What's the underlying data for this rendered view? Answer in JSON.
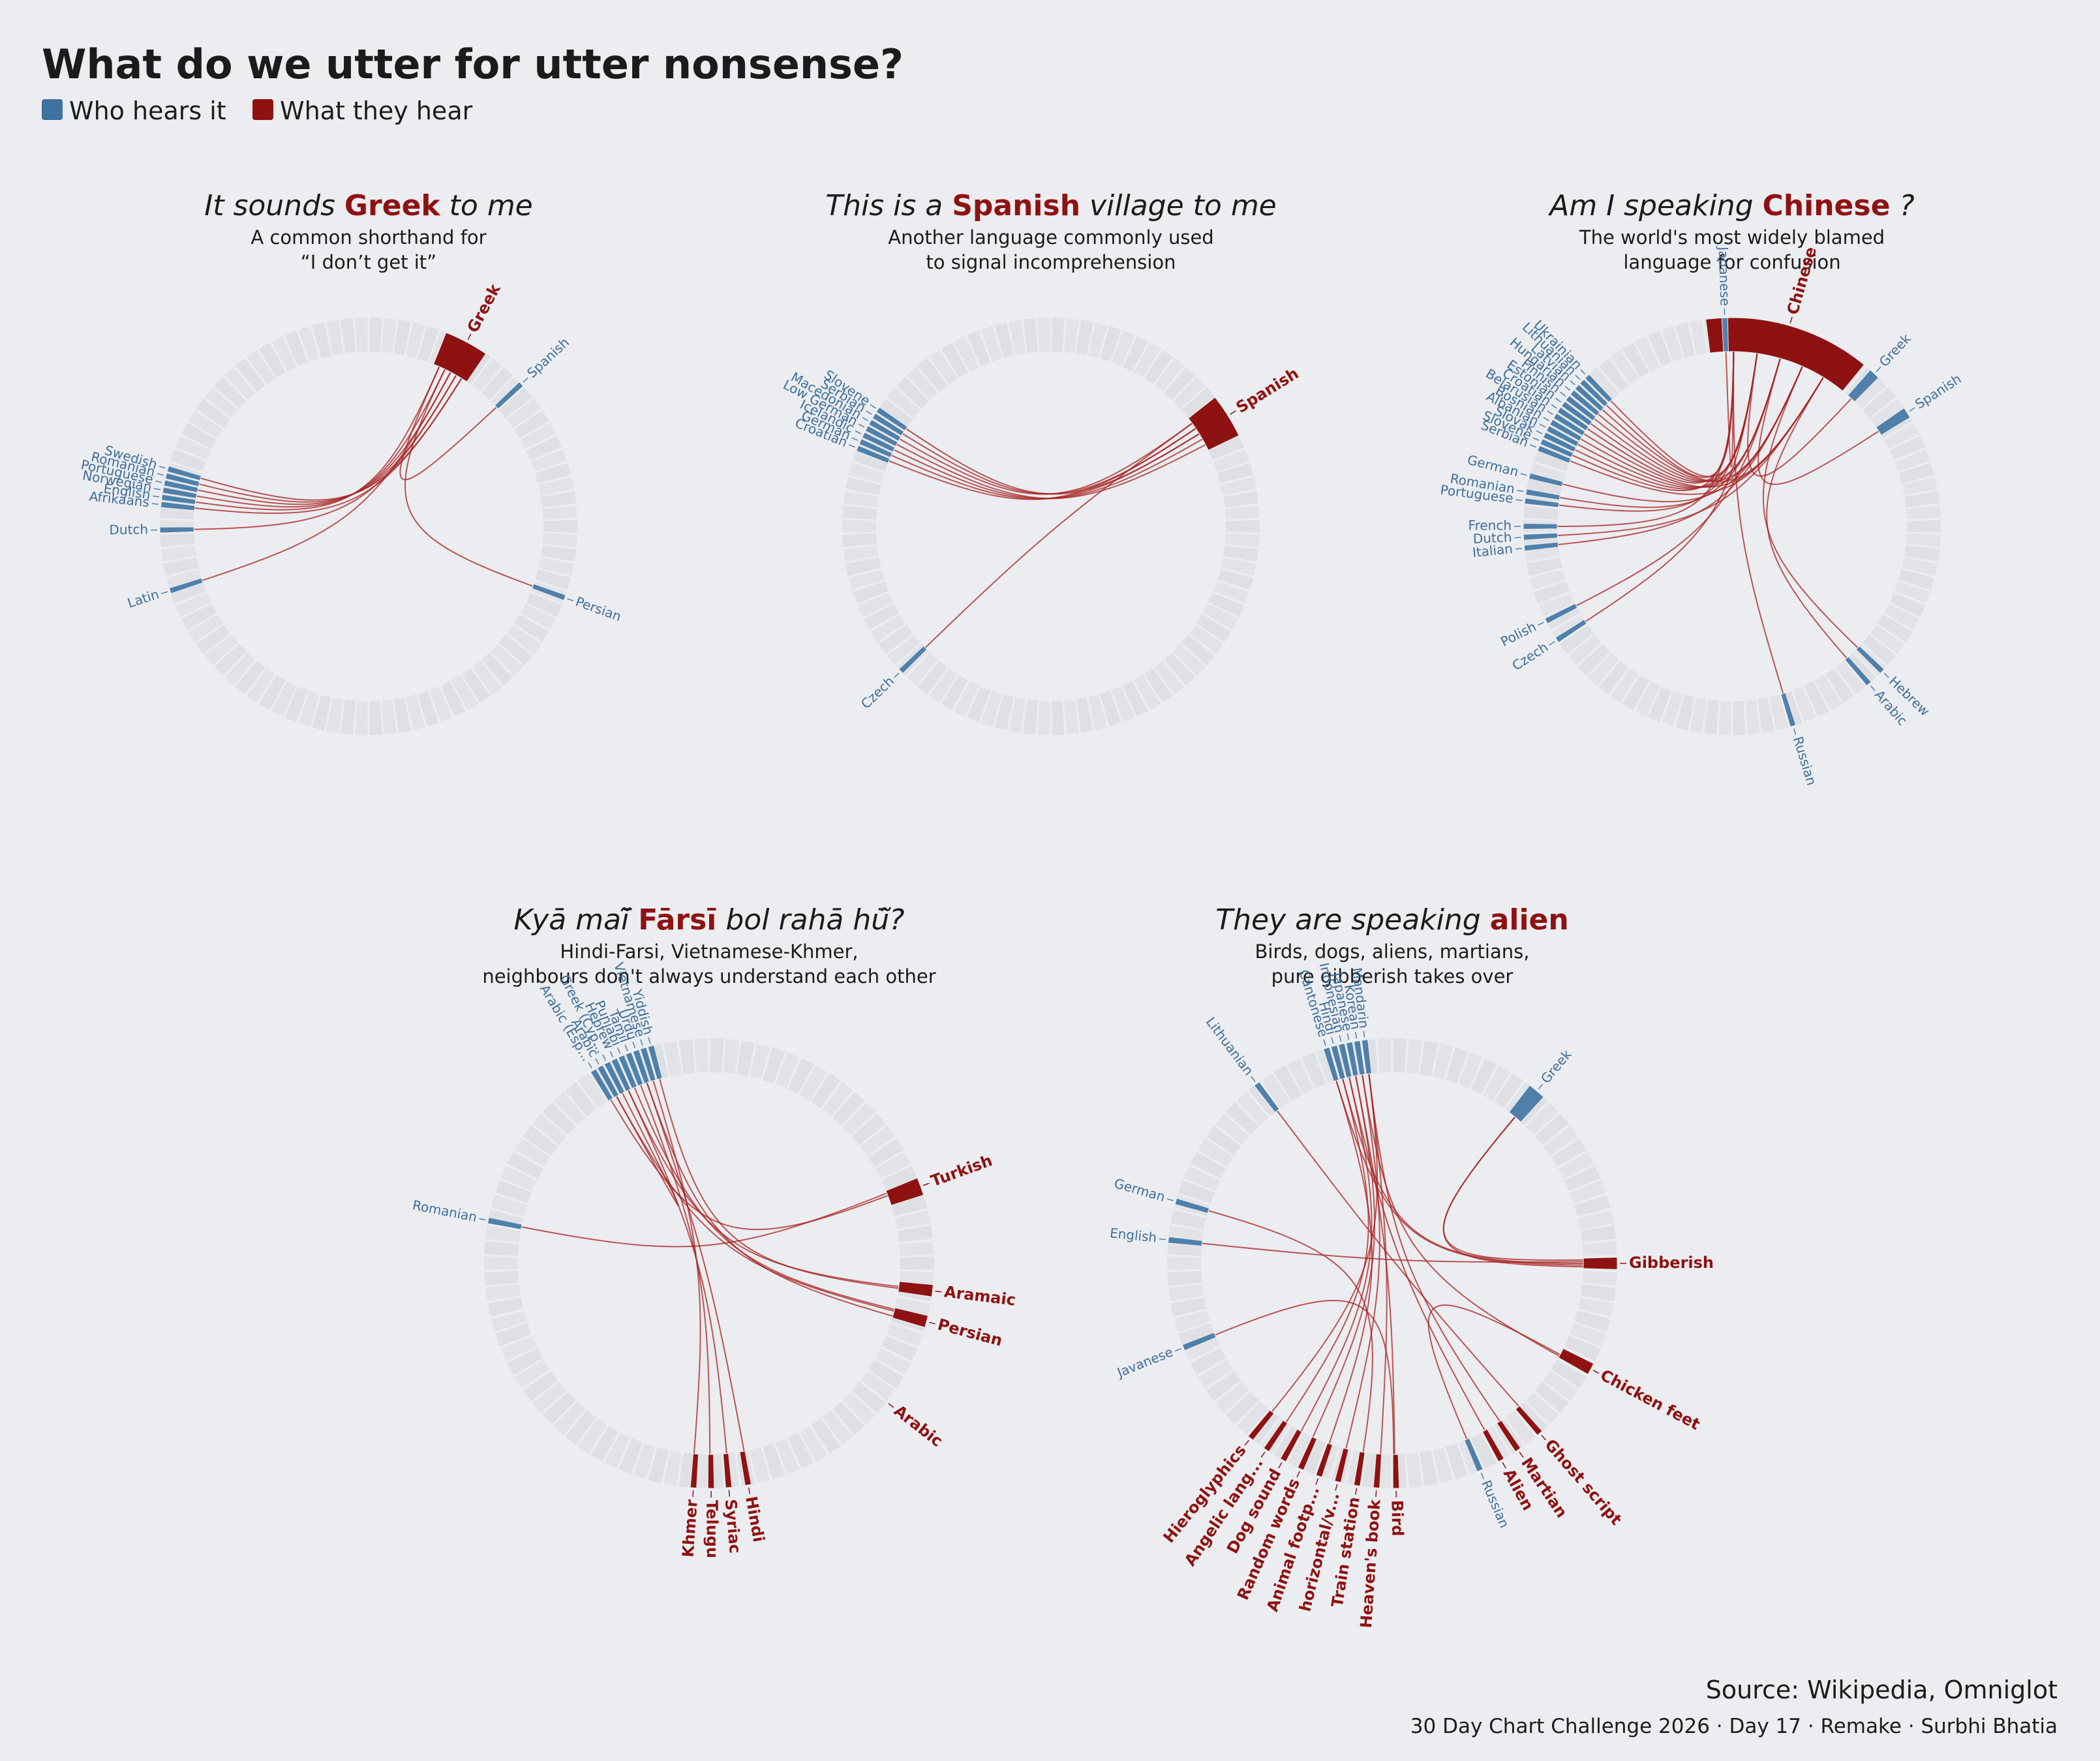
{
  "title": "What do we utter for utter nonsense?",
  "legend": [
    {
      "label": "Who hears it",
      "color": "#3E72A0"
    },
    {
      "label": "What they hear",
      "color": "#8E1212"
    }
  ],
  "colors": {
    "source": "#4F80AA",
    "target": "#8E1212",
    "link": "#A52222",
    "ring": "#DFE0E4",
    "background": "#ECEDF0"
  },
  "source_note": "Source: Wikipedia, Omniglot",
  "credit": "30 Day Chart Challenge 2026 · Day 17 · Remake · Surbhi Bhatia",
  "panels": [
    {
      "title_pre": "It sounds",
      "title_hl": "Greek",
      "title_post": "to me",
      "subtitle": [
        "A common shorthand for",
        "“I don’t get it”"
      ]
    },
    {
      "title_pre": "This is a",
      "title_hl": "Spanish",
      "title_post": "village to me",
      "subtitle": [
        "Another language commonly used",
        "to signal incomprehension"
      ]
    },
    {
      "title_pre": "Am I speaking",
      "title_hl": "Chinese",
      "title_post": "?",
      "subtitle": [
        "The world's most widely blamed",
        "language for confusion"
      ]
    },
    {
      "title_pre": "Kyā maī̃",
      "title_hl": "Fārsī",
      "title_post": "bol rahā hū̃?",
      "subtitle": [
        "Hindi-Farsi, Vietnamese-Khmer,",
        "neighbours don't always understand each other"
      ]
    },
    {
      "title_pre": "They are speaking",
      "title_hl": "alien",
      "title_post": "",
      "subtitle": [
        "Birds, dogs, aliens, martians,",
        "pure gibberish takes over"
      ]
    }
  ],
  "chart_data": [
    {
      "type": "chord",
      "title": "It sounds Greek to me",
      "nodes": [
        {
          "name": "Greek",
          "role": "heard",
          "angle": 28,
          "weight": 8
        },
        {
          "name": "Spanish",
          "role": "hearer",
          "angle": 47,
          "weight": 1
        },
        {
          "name": "Persian",
          "role": "hearer",
          "angle": 110,
          "weight": 1
        },
        {
          "name": "Latin",
          "role": "hearer",
          "angle": 252,
          "weight": 1
        },
        {
          "name": "Dutch",
          "role": "hearer",
          "angle": 269,
          "weight": 1
        },
        {
          "name": "Afrikaans",
          "role": "hearer",
          "angle": 276,
          "weight": 1
        },
        {
          "name": "English",
          "role": "hearer",
          "angle": 278,
          "weight": 1
        },
        {
          "name": "Norwegian",
          "role": "hearer",
          "angle": 280,
          "weight": 1
        },
        {
          "name": "Portuguese",
          "role": "hearer",
          "angle": 282,
          "weight": 1
        },
        {
          "name": "Romanian",
          "role": "hearer",
          "angle": 284,
          "weight": 1
        },
        {
          "name": "Swedish",
          "role": "hearer",
          "angle": 286,
          "weight": 1
        }
      ],
      "links": [
        {
          "from": "Spanish",
          "to": "Greek"
        },
        {
          "from": "Persian",
          "to": "Greek"
        },
        {
          "from": "Latin",
          "to": "Greek"
        },
        {
          "from": "Dutch",
          "to": "Greek"
        },
        {
          "from": "Afrikaans",
          "to": "Greek"
        },
        {
          "from": "English",
          "to": "Greek"
        },
        {
          "from": "Norwegian",
          "to": "Greek"
        },
        {
          "from": "Portuguese",
          "to": "Greek"
        },
        {
          "from": "Romanian",
          "to": "Greek"
        },
        {
          "from": "Swedish",
          "to": "Greek"
        }
      ]
    },
    {
      "type": "chord",
      "title": "This is a Spanish village to me",
      "nodes": [
        {
          "name": "Spanish",
          "role": "heard",
          "angle": 58,
          "weight": 8
        },
        {
          "name": "Czech",
          "role": "hearer",
          "angle": 226,
          "weight": 1
        },
        {
          "name": "Croatian",
          "role": "hearer",
          "angle": 292,
          "weight": 1
        },
        {
          "name": "German",
          "role": "hearer",
          "angle": 294,
          "weight": 1
        },
        {
          "name": "Icelandic",
          "role": "hearer",
          "angle": 296,
          "weight": 1
        },
        {
          "name": "Low German",
          "role": "hearer",
          "angle": 298,
          "weight": 1
        },
        {
          "name": "Macedonian",
          "role": "hearer",
          "angle": 300,
          "weight": 1
        },
        {
          "name": "Serbian",
          "role": "hearer",
          "angle": 302,
          "weight": 1
        },
        {
          "name": "Slovene",
          "role": "hearer",
          "angle": 304,
          "weight": 1
        }
      ],
      "links": [
        {
          "from": "Czech",
          "to": "Spanish"
        },
        {
          "from": "Croatian",
          "to": "Spanish"
        },
        {
          "from": "German",
          "to": "Spanish"
        },
        {
          "from": "Icelandic",
          "to": "Spanish"
        },
        {
          "from": "Low German",
          "to": "Spanish"
        },
        {
          "from": "Macedonian",
          "to": "Spanish"
        },
        {
          "from": "Serbian",
          "to": "Spanish"
        },
        {
          "from": "Slovene",
          "to": "Spanish"
        }
      ]
    },
    {
      "type": "chord",
      "title": "Am I speaking Chinese ?",
      "nodes": [
        {
          "name": "Chinese",
          "role": "heard",
          "angle": 16,
          "weight": 30
        },
        {
          "name": "Japanese",
          "role": "hearer",
          "angle": 358,
          "weight": 1
        },
        {
          "name": "Greek",
          "role": "hearer",
          "angle": 43,
          "weight": 2
        },
        {
          "name": "Spanish",
          "role": "hearer",
          "angle": 57,
          "weight": 2
        },
        {
          "name": "Hebrew",
          "role": "hearer",
          "angle": 134,
          "weight": 1
        },
        {
          "name": "Arabic",
          "role": "hearer",
          "angle": 139,
          "weight": 1
        },
        {
          "name": "Russian",
          "role": "hearer",
          "angle": 163,
          "weight": 1
        },
        {
          "name": "Czech",
          "role": "hearer",
          "angle": 237,
          "weight": 1
        },
        {
          "name": "Polish",
          "role": "hearer",
          "angle": 243,
          "weight": 1
        },
        {
          "name": "Italian",
          "role": "hearer",
          "angle": 264,
          "weight": 1
        },
        {
          "name": "Dutch",
          "role": "hearer",
          "angle": 267,
          "weight": 1
        },
        {
          "name": "French",
          "role": "hearer",
          "angle": 270,
          "weight": 1
        },
        {
          "name": "Portuguese",
          "role": "hearer",
          "angle": 277,
          "weight": 1
        },
        {
          "name": "Romanian",
          "role": "hearer",
          "angle": 279.5,
          "weight": 1
        },
        {
          "name": "German",
          "role": "hearer",
          "angle": 284,
          "weight": 1
        },
        {
          "name": "Serbian",
          "role": "hearer",
          "angle": 292,
          "weight": 1
        },
        {
          "name": "Slovene",
          "role": "hearer",
          "angle": 294,
          "weight": 1
        },
        {
          "name": "Slovak",
          "role": "hearer",
          "angle": 296,
          "weight": 1
        },
        {
          "name": "Albanian",
          "role": "hearer",
          "angle": 298,
          "weight": 1
        },
        {
          "name": "Bosnian",
          "role": "hearer",
          "angle": 300,
          "weight": 1
        },
        {
          "name": "Belarusian",
          "role": "hearer",
          "angle": 302,
          "weight": 1
        },
        {
          "name": "Croatian",
          "role": "hearer",
          "angle": 304,
          "weight": 1
        },
        {
          "name": "Estonian",
          "role": "hearer",
          "angle": 306,
          "weight": 1
        },
        {
          "name": "Finnish",
          "role": "hearer",
          "angle": 308,
          "weight": 1
        },
        {
          "name": "Hungarian",
          "role": "hearer",
          "angle": 310,
          "weight": 1
        },
        {
          "name": "Latvian",
          "role": "hearer",
          "angle": 312,
          "weight": 1
        },
        {
          "name": "Lithuanian",
          "role": "hearer",
          "angle": 314,
          "weight": 1
        },
        {
          "name": "Ukrainian",
          "role": "hearer",
          "angle": 316,
          "weight": 1
        }
      ],
      "links": [
        {
          "from": "Japanese",
          "to": "Chinese"
        },
        {
          "from": "Greek",
          "to": "Chinese"
        },
        {
          "from": "Spanish",
          "to": "Chinese"
        },
        {
          "from": "Hebrew",
          "to": "Chinese"
        },
        {
          "from": "Arabic",
          "to": "Chinese"
        },
        {
          "from": "Russian",
          "to": "Chinese"
        },
        {
          "from": "Czech",
          "to": "Chinese"
        },
        {
          "from": "Polish",
          "to": "Chinese"
        },
        {
          "from": "Italian",
          "to": "Chinese"
        },
        {
          "from": "Dutch",
          "to": "Chinese"
        },
        {
          "from": "French",
          "to": "Chinese"
        },
        {
          "from": "Portuguese",
          "to": "Chinese"
        },
        {
          "from": "Romanian",
          "to": "Chinese"
        },
        {
          "from": "German",
          "to": "Chinese"
        },
        {
          "from": "Serbian",
          "to": "Chinese"
        },
        {
          "from": "Slovene",
          "to": "Chinese"
        },
        {
          "from": "Slovak",
          "to": "Chinese"
        },
        {
          "from": "Albanian",
          "to": "Chinese"
        },
        {
          "from": "Bosnian",
          "to": "Chinese"
        },
        {
          "from": "Belarusian",
          "to": "Chinese"
        },
        {
          "from": "Croatian",
          "to": "Chinese"
        },
        {
          "from": "Estonian",
          "to": "Chinese"
        },
        {
          "from": "Finnish",
          "to": "Chinese"
        },
        {
          "from": "Hungarian",
          "to": "Chinese"
        },
        {
          "from": "Latvian",
          "to": "Chinese"
        },
        {
          "from": "Lithuanian",
          "to": "Chinese"
        },
        {
          "from": "Ukrainian",
          "to": "Chinese"
        }
      ]
    },
    {
      "type": "chord",
      "title": "Kyā maī̃ Fārsī bol rahā hū̃?",
      "nodes": [
        {
          "name": "Turkish",
          "role": "heard",
          "angle": 70,
          "weight": 3
        },
        {
          "name": "Aramaic",
          "role": "heard",
          "angle": 97,
          "weight": 2
        },
        {
          "name": "Persian",
          "role": "heard",
          "angle": 105,
          "weight": 2
        },
        {
          "name": "Arabic",
          "role": "heard",
          "angle": 128,
          "weight": 2
        },
        {
          "name": "Hindi",
          "role": "heard",
          "angle": 170,
          "weight": 1
        },
        {
          "name": "Syriac",
          "role": "heard",
          "angle": 175,
          "weight": 1
        },
        {
          "name": "Telugu",
          "role": "heard",
          "angle": 179.5,
          "weight": 1
        },
        {
          "name": "Khmer",
          "role": "heard",
          "angle": 184,
          "weight": 1
        },
        {
          "name": "Romanian",
          "role": "hearer",
          "angle": 281,
          "weight": 1
        },
        {
          "name": "Arabic (Esp...",
          "role": "hearer",
          "angle": 329,
          "weight": 1
        },
        {
          "name": "Arabic",
          "role": "hearer",
          "angle": 331,
          "weight": 1
        },
        {
          "name": "Greek (Cyp...",
          "role": "hearer",
          "angle": 333,
          "weight": 1
        },
        {
          "name": "Hebrew",
          "role": "hearer",
          "angle": 335,
          "weight": 1
        },
        {
          "name": "Punjabi",
          "role": "hearer",
          "angle": 337,
          "weight": 1
        },
        {
          "name": "Tamil",
          "role": "hearer",
          "angle": 339,
          "weight": 1
        },
        {
          "name": "Urdu",
          "role": "hearer",
          "angle": 341,
          "weight": 1
        },
        {
          "name": "Vietnamese",
          "role": "hearer",
          "angle": 343,
          "weight": 1
        },
        {
          "name": "Yiddish",
          "role": "hearer",
          "angle": 345,
          "weight": 1
        }
      ],
      "links": [
        {
          "from": "Romanian",
          "to": "Turkish"
        },
        {
          "from": "Arabic (Esp...",
          "to": "Turkish"
        },
        {
          "from": "Hebrew",
          "to": "Aramaic"
        },
        {
          "from": "Yiddish",
          "to": "Aramaic"
        },
        {
          "from": "Urdu",
          "to": "Persian"
        },
        {
          "from": "Punjabi",
          "to": "Persian"
        },
        {
          "from": "Arabic",
          "to": "Persian"
        },
        {
          "from": "Greek (Cyp...",
          "to": "Arabic"
        },
        {
          "from": "Tamil",
          "to": "Telugu"
        },
        {
          "from": "Vietnamese",
          "to": "Khmer"
        },
        {
          "from": "Urdu",
          "to": "Hindi"
        },
        {
          "from": "Hebrew",
          "to": "Syriac"
        }
      ]
    },
    {
      "type": "chord",
      "title": "They are speaking alien",
      "nodes": [
        {
          "name": "Greek",
          "role": "hearer",
          "angle": 40,
          "weight": 3
        },
        {
          "name": "Gibberish",
          "role": "heard",
          "angle": 90,
          "weight": 2
        },
        {
          "name": "Chicken feet",
          "role": "heard",
          "angle": 118,
          "weight": 2
        },
        {
          "name": "Ghost script",
          "role": "heard",
          "angle": 139,
          "weight": 1
        },
        {
          "name": "Martian",
          "role": "heard",
          "angle": 146,
          "weight": 1
        },
        {
          "name": "Alien",
          "role": "heard",
          "angle": 151,
          "weight": 1
        },
        {
          "name": "Russian",
          "role": "hearer",
          "angle": 157,
          "weight": 1
        },
        {
          "name": "Bird",
          "role": "heard",
          "angle": 179,
          "weight": 1
        },
        {
          "name": "Heaven's book",
          "role": "heard",
          "angle": 184,
          "weight": 1
        },
        {
          "name": "Train station",
          "role": "heard",
          "angle": 189,
          "weight": 1
        },
        {
          "name": "horizontal/v...",
          "role": "heard",
          "angle": 194,
          "weight": 1
        },
        {
          "name": "Animal footp...",
          "role": "heard",
          "angle": 199,
          "weight": 1
        },
        {
          "name": "Random words",
          "role": "heard",
          "angle": 204,
          "weight": 1
        },
        {
          "name": "Dog sound",
          "role": "heard",
          "angle": 209,
          "weight": 1
        },
        {
          "name": "Angelic lang...",
          "role": "heard",
          "angle": 214,
          "weight": 1
        },
        {
          "name": "Hieroglyphics",
          "role": "heard",
          "angle": 219,
          "weight": 1
        },
        {
          "name": "Javanese",
          "role": "hearer",
          "angle": 248,
          "weight": 1
        },
        {
          "name": "English",
          "role": "hearer",
          "angle": 276,
          "weight": 1
        },
        {
          "name": "German",
          "role": "hearer",
          "angle": 286,
          "weight": 1
        },
        {
          "name": "Lithuanian",
          "role": "hearer",
          "angle": 323,
          "weight": 1
        },
        {
          "name": "Cantonese",
          "role": "hearer",
          "angle": 343,
          "weight": 1
        },
        {
          "name": "Hindi",
          "role": "hearer",
          "angle": 345,
          "weight": 1
        },
        {
          "name": "Indonesian",
          "role": "hearer",
          "angle": 347,
          "weight": 1
        },
        {
          "name": "Japanese",
          "role": "hearer",
          "angle": 349,
          "weight": 1
        },
        {
          "name": "Korean",
          "role": "hearer",
          "angle": 351,
          "weight": 1
        },
        {
          "name": "Mandarin",
          "role": "hearer",
          "angle": 353,
          "weight": 1
        }
      ],
      "links": [
        {
          "from": "Greek",
          "to": "Gibberish"
        },
        {
          "from": "English",
          "to": "Gibberish"
        },
        {
          "from": "Hindi",
          "to": "Gibberish"
        },
        {
          "from": "Cantonese",
          "to": "Gibberish"
        },
        {
          "from": "Korean",
          "to": "Chicken feet"
        },
        {
          "from": "Lithuanian",
          "to": "Ghost script"
        },
        {
          "from": "Mandarin",
          "to": "Martian"
        },
        {
          "from": "Indonesian",
          "to": "Alien"
        },
        {
          "from": "Japanese",
          "to": "Bird"
        },
        {
          "from": "Javanese",
          "to": "Bird"
        },
        {
          "from": "Mandarin",
          "to": "Heaven's book"
        },
        {
          "from": "German",
          "to": "Train station"
        },
        {
          "from": "Korean",
          "to": "horizontal/v..."
        },
        {
          "from": "Cantonese",
          "to": "Animal footp..."
        },
        {
          "from": "Japanese",
          "to": "Random words"
        },
        {
          "from": "Indonesian",
          "to": "Dog sound"
        },
        {
          "from": "Hindi",
          "to": "Angelic lang..."
        },
        {
          "from": "Mandarin",
          "to": "Hieroglyphics"
        },
        {
          "from": "Russian",
          "to": "Chicken feet"
        },
        {
          "from": "Greek",
          "to": "Gibberish"
        }
      ]
    }
  ]
}
